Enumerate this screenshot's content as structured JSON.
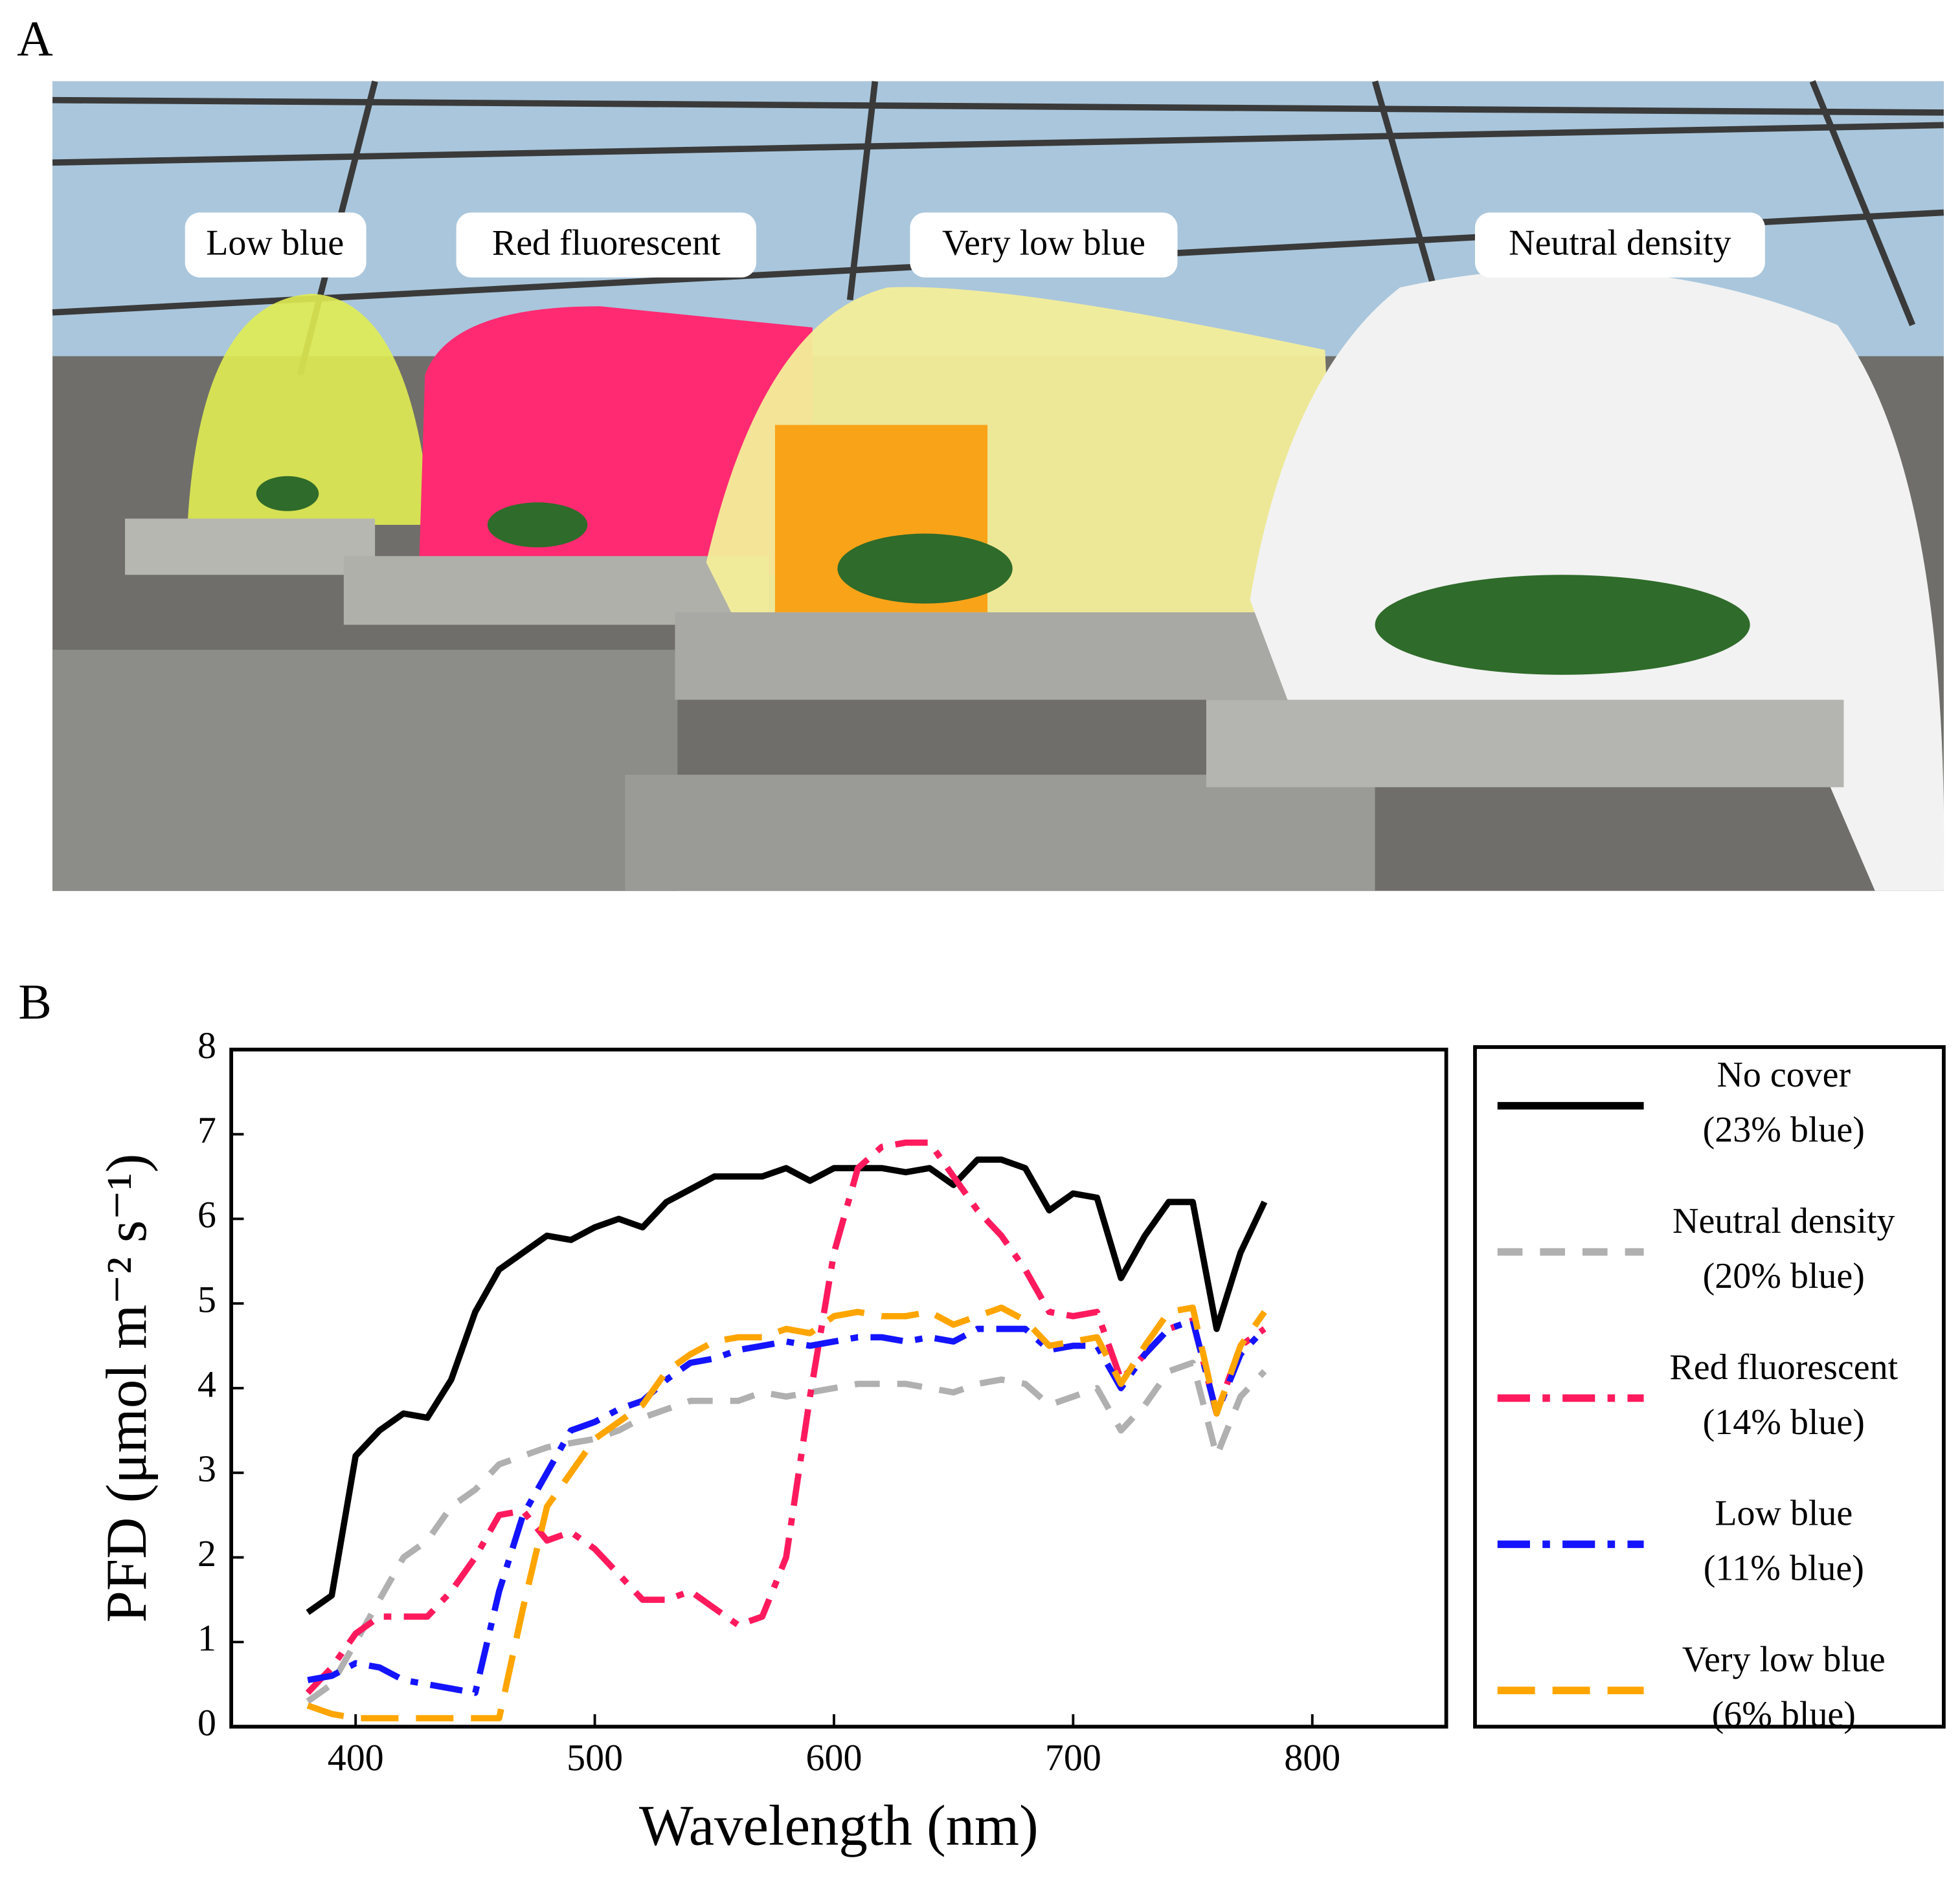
{
  "panel_a": {
    "label": "A",
    "annotations": [
      "Low blue",
      "Red fluorescent",
      "Very low blue",
      "Neutral density"
    ]
  },
  "chart_data": {
    "type": "line",
    "panel_label": "B",
    "x_label": "Wavelength (nm)",
    "y_label": "PFD (μmol m⁻² s⁻¹)",
    "xlim": [
      348,
      856
    ],
    "ylim": [
      0,
      8
    ],
    "xticks": [
      400,
      500,
      600,
      700,
      800
    ],
    "yticks": [
      0,
      1,
      2,
      3,
      4,
      5,
      6,
      7,
      8
    ],
    "x": [
      380,
      390,
      400,
      410,
      420,
      430,
      440,
      450,
      460,
      470,
      480,
      490,
      500,
      510,
      520,
      530,
      540,
      550,
      560,
      570,
      580,
      590,
      600,
      610,
      620,
      630,
      640,
      650,
      660,
      670,
      680,
      690,
      700,
      710,
      720,
      730,
      740,
      750,
      760,
      770,
      780
    ],
    "series": [
      {
        "name": "No cover",
        "note": "(23% blue)",
        "color": "#000000",
        "dash": "solid",
        "values": [
          1.35,
          1.55,
          3.2,
          3.5,
          3.7,
          3.65,
          4.1,
          4.9,
          5.4,
          5.6,
          5.8,
          5.75,
          5.9,
          6.0,
          5.9,
          6.2,
          6.35,
          6.5,
          6.5,
          6.5,
          6.6,
          6.45,
          6.6,
          6.6,
          6.6,
          6.55,
          6.6,
          6.4,
          6.7,
          6.7,
          6.6,
          6.1,
          6.3,
          6.25,
          5.3,
          5.8,
          6.2,
          6.2,
          4.7,
          5.6,
          6.2
        ]
      },
      {
        "name": "Neutral density",
        "note": "(20% blue)",
        "color": "#b0b0b0",
        "dash": "dashed",
        "values": [
          0.3,
          0.5,
          1.0,
          1.5,
          2.0,
          2.2,
          2.6,
          2.8,
          3.1,
          3.2,
          3.3,
          3.35,
          3.4,
          3.5,
          3.65,
          3.75,
          3.85,
          3.85,
          3.85,
          3.95,
          3.9,
          3.95,
          4.0,
          4.05,
          4.05,
          4.05,
          4.0,
          3.95,
          4.05,
          4.1,
          4.05,
          3.8,
          3.9,
          4.0,
          3.5,
          3.8,
          4.2,
          4.3,
          3.2,
          3.9,
          4.2
        ]
      },
      {
        "name": "Red fluorescent",
        "note": "(14% blue)",
        "color": "#ff1a5e",
        "dash": "dashdot",
        "values": [
          0.4,
          0.7,
          1.1,
          1.3,
          1.3,
          1.3,
          1.6,
          2.0,
          2.5,
          2.55,
          2.2,
          2.3,
          2.1,
          1.8,
          1.5,
          1.5,
          1.6,
          1.4,
          1.2,
          1.3,
          2.0,
          3.9,
          5.6,
          6.6,
          6.85,
          6.9,
          6.9,
          6.5,
          6.1,
          5.8,
          5.4,
          4.9,
          4.85,
          4.9,
          4.1,
          4.4,
          4.7,
          4.8,
          3.7,
          4.5,
          4.7
        ]
      },
      {
        "name": "Low blue",
        "note": "(11% blue)",
        "color": "#1414ff",
        "dash": "dashdot",
        "values": [
          0.55,
          0.6,
          0.75,
          0.7,
          0.55,
          0.5,
          0.45,
          0.4,
          1.6,
          2.5,
          3.0,
          3.5,
          3.6,
          3.75,
          3.85,
          4.1,
          4.3,
          4.35,
          4.45,
          4.5,
          4.55,
          4.5,
          4.55,
          4.6,
          4.6,
          4.55,
          4.6,
          4.55,
          4.7,
          4.7,
          4.7,
          4.45,
          4.5,
          4.5,
          4.0,
          4.4,
          4.7,
          4.8,
          3.7,
          4.4,
          4.7
        ]
      },
      {
        "name": "Very low blue",
        "note": "(6% blue)",
        "color": "#ffa500",
        "dash": "longdash",
        "values": [
          0.25,
          0.15,
          0.1,
          0.1,
          0.1,
          0.1,
          0.1,
          0.1,
          0.1,
          1.4,
          2.6,
          3.0,
          3.4,
          3.6,
          3.8,
          4.2,
          4.4,
          4.55,
          4.6,
          4.6,
          4.7,
          4.65,
          4.85,
          4.9,
          4.85,
          4.85,
          4.9,
          4.75,
          4.85,
          4.95,
          4.8,
          4.5,
          4.55,
          4.6,
          4.05,
          4.5,
          4.9,
          4.95,
          3.7,
          4.5,
          4.9
        ]
      }
    ]
  }
}
